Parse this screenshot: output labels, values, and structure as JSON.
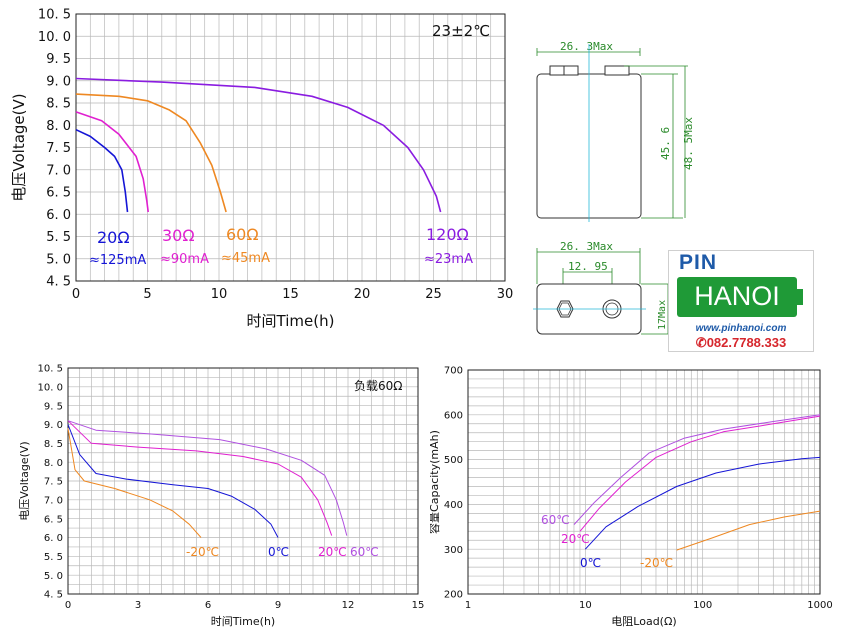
{
  "chart_data": [
    {
      "type": "line",
      "title": "",
      "annotation": "23±2℃",
      "xlabel": "时间Time(h)",
      "ylabel": "电压Voltage(V)",
      "xlim": [
        0,
        30
      ],
      "ylim": [
        4.5,
        10.5
      ],
      "xticks": [
        "0",
        "5",
        "10",
        "15",
        "20",
        "25",
        "30"
      ],
      "yticks": [
        "4. 5",
        "5. 0",
        "5. 5",
        "6. 0",
        "6. 5",
        "7. 0",
        "7. 5",
        "8. 0",
        "8. 5",
        "9. 0",
        "9. 5",
        "10. 0",
        "10. 5"
      ],
      "grid": true,
      "series": [
        {
          "name": "20Ω",
          "current": "≈125mA",
          "color": "#1515d6",
          "points": [
            [
              0,
              7.9
            ],
            [
              1,
              7.75
            ],
            [
              2,
              7.5
            ],
            [
              2.7,
              7.3
            ],
            [
              3.2,
              7.0
            ],
            [
              3.45,
              6.5
            ],
            [
              3.6,
              6.05
            ]
          ]
        },
        {
          "name": "30Ω",
          "current": "≈90mA",
          "color": "#e020d0",
          "points": [
            [
              0,
              8.3
            ],
            [
              1.8,
              8.1
            ],
            [
              3,
              7.8
            ],
            [
              4.2,
              7.3
            ],
            [
              4.7,
              6.8
            ],
            [
              4.95,
              6.3
            ],
            [
              5.05,
              6.05
            ]
          ]
        },
        {
          "name": "60Ω",
          "current": "≈45mA",
          "color": "#ee8822",
          "points": [
            [
              0,
              8.7
            ],
            [
              3,
              8.65
            ],
            [
              5,
              8.55
            ],
            [
              6.5,
              8.35
            ],
            [
              7.7,
              8.1
            ],
            [
              8.7,
              7.6
            ],
            [
              9.5,
              7.1
            ],
            [
              10.1,
              6.5
            ],
            [
              10.5,
              6.05
            ]
          ]
        },
        {
          "name": "120Ω",
          "current": "≈23mA",
          "color": "#8a1ce0",
          "points": [
            [
              0,
              9.05
            ],
            [
              6,
              8.97
            ],
            [
              12.5,
              8.85
            ],
            [
              16.5,
              8.65
            ],
            [
              19,
              8.4
            ],
            [
              21.5,
              8.0
            ],
            [
              23.2,
              7.5
            ],
            [
              24.3,
              7.0
            ],
            [
              25.2,
              6.4
            ],
            [
              25.5,
              6.05
            ]
          ]
        }
      ]
    },
    {
      "type": "line",
      "title": "",
      "annotation": "负载60Ω",
      "xlabel": "时间Time(h)",
      "ylabel": "电压Voltage(V)",
      "xlim": [
        0,
        15
      ],
      "ylim": [
        4.5,
        10.5
      ],
      "xticks": [
        "0",
        "3",
        "6",
        "9",
        "12",
        "15"
      ],
      "yticks": [
        "4. 5",
        "5. 0",
        "5. 5",
        "6. 0",
        "6. 5",
        "7. 0",
        "7. 5",
        "8. 0",
        "8. 5",
        "9. 0",
        "9. 5",
        "10. 0",
        "10. 5"
      ],
      "grid": true,
      "series": [
        {
          "name": "-20℃",
          "color": "#ee8822",
          "points": [
            [
              0,
              8.9
            ],
            [
              0.3,
              7.8
            ],
            [
              0.7,
              7.5
            ],
            [
              2,
              7.3
            ],
            [
              3.5,
              7.0
            ],
            [
              4.5,
              6.7
            ],
            [
              5.2,
              6.35
            ],
            [
              5.7,
              6.0
            ]
          ]
        },
        {
          "name": "0℃",
          "color": "#1515d6",
          "points": [
            [
              0,
              9.0
            ],
            [
              0.5,
              8.2
            ],
            [
              1.2,
              7.7
            ],
            [
              2.5,
              7.55
            ],
            [
              4.5,
              7.4
            ],
            [
              6,
              7.3
            ],
            [
              7,
              7.1
            ],
            [
              8,
              6.75
            ],
            [
              8.7,
              6.35
            ],
            [
              9,
              6.0
            ]
          ]
        },
        {
          "name": "20℃",
          "color": "#e020d0",
          "points": [
            [
              0,
              9.1
            ],
            [
              1,
              8.5
            ],
            [
              3,
              8.4
            ],
            [
              5.5,
              8.3
            ],
            [
              7.5,
              8.15
            ],
            [
              9,
              7.95
            ],
            [
              10,
              7.6
            ],
            [
              10.7,
              7.0
            ],
            [
              11.1,
              6.4
            ],
            [
              11.3,
              6.05
            ]
          ]
        },
        {
          "name": "60℃",
          "color": "#b050e0",
          "points": [
            [
              0,
              9.1
            ],
            [
              1.2,
              8.85
            ],
            [
              3.5,
              8.75
            ],
            [
              6.5,
              8.6
            ],
            [
              8.5,
              8.35
            ],
            [
              10,
              8.05
            ],
            [
              11,
              7.65
            ],
            [
              11.5,
              7.0
            ],
            [
              11.8,
              6.4
            ],
            [
              11.95,
              6.05
            ]
          ]
        }
      ]
    },
    {
      "type": "line",
      "title": "",
      "xlabel": "电阻Load(Ω)",
      "ylabel": "容量Capacity(mAh)",
      "xscale": "log",
      "xlim": [
        1,
        1000
      ],
      "ylim": [
        200,
        700
      ],
      "xticks": [
        "1",
        "10",
        "100",
        "1000"
      ],
      "yticks": [
        "200",
        "300",
        "400",
        "500",
        "600",
        "700"
      ],
      "grid": true,
      "series": [
        {
          "name": "60℃",
          "color": "#b050e0",
          "points": [
            [
              8,
              355
            ],
            [
              12,
              405
            ],
            [
              20,
              460
            ],
            [
              35,
              515
            ],
            [
              70,
              548
            ],
            [
              150,
              568
            ],
            [
              400,
              585
            ],
            [
              1000,
              600
            ]
          ]
        },
        {
          "name": "20℃",
          "color": "#e020d0",
          "points": [
            [
              9,
              340
            ],
            [
              13,
              390
            ],
            [
              22,
              450
            ],
            [
              40,
              505
            ],
            [
              80,
              540
            ],
            [
              150,
              562
            ],
            [
              400,
              580
            ],
            [
              1000,
              597
            ]
          ]
        },
        {
          "name": "0℃",
          "color": "#1515d6",
          "points": [
            [
              10,
              300
            ],
            [
              15,
              350
            ],
            [
              28,
              395
            ],
            [
              60,
              440
            ],
            [
              130,
              470
            ],
            [
              300,
              490
            ],
            [
              700,
              502
            ],
            [
              1000,
              505
            ]
          ]
        },
        {
          "name": "-20℃",
          "color": "#ee8822",
          "points": [
            [
              60,
              298
            ],
            [
              120,
              325
            ],
            [
              250,
              355
            ],
            [
              500,
              372
            ],
            [
              1000,
              385
            ]
          ]
        }
      ]
    }
  ],
  "drawing": {
    "front_width": "26. 3Max",
    "front_height_inner": "45. 6",
    "front_height_max": "48. 5Max",
    "top_width": "26. 3Max",
    "terminal_spacing": "12. 95",
    "top_depth": "17Max",
    "color": "#2a8a2a"
  },
  "logo": {
    "pin": "PIN",
    "hanoi": "HANOI",
    "website": "www.pinhanoi.com",
    "phone": "082.7788.333"
  }
}
